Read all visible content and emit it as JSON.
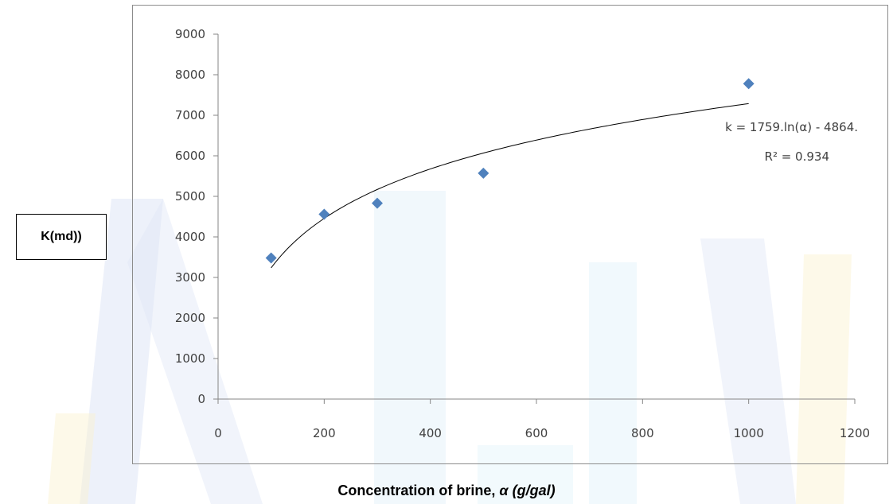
{
  "chart_data": {
    "type": "scatter",
    "title": "",
    "xlabel_text": "Concentration of brine, ",
    "xlabel_symbol": "α (g/gal)",
    "ylabel": "K(md))",
    "xlim": [
      0,
      1200
    ],
    "ylim": [
      0,
      9000
    ],
    "x_ticks": [
      0,
      200,
      400,
      600,
      800,
      1000,
      1200
    ],
    "y_ticks": [
      0,
      1000,
      2000,
      3000,
      4000,
      5000,
      6000,
      7000,
      8000,
      9000
    ],
    "grid": false,
    "legend": "none",
    "marker_color": "#4f81bd",
    "series": [
      {
        "x": [
          100,
          200,
          300,
          500,
          1000
        ],
        "y": [
          3480,
          4560,
          4830,
          5570,
          7780
        ]
      }
    ],
    "trendline": {
      "type": "logarithmic",
      "a": 1759,
      "b": -4864,
      "x_range": [
        100,
        1000
      ],
      "equation": "k = 1759.ln(α) - 4864.",
      "r2_label": "R² = 0.934"
    }
  }
}
